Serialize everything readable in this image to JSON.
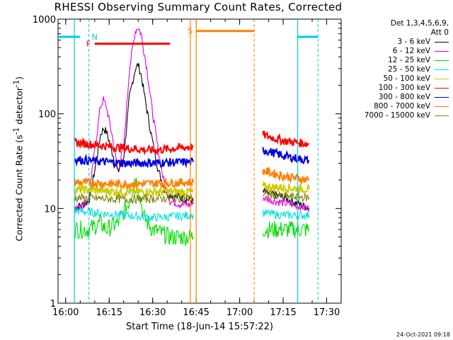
{
  "title": "RHESSI Observing Summary Count Rates, Corrected",
  "timestamp": "24-Oct-2021 09:18",
  "legend_header": [
    "Det 1,3,4,5,6,9,",
    "Att 0"
  ],
  "chart_data": {
    "type": "line",
    "xlabel": "Start Time (18-Jun-14 15:57:22)",
    "ylabel": "Corrected Count Rate (s⁻¹ detector⁻¹)",
    "ylabel_main": "Corrected Count Rate (s",
    "ylabel_sup1": "-1",
    "ylabel_mid": " detector",
    "ylabel_sup2": "-1",
    "ylabel_end": ")",
    "y_scale": "log",
    "ylim": [
      1,
      1000
    ],
    "xlim": [
      "15:57:22",
      "17:35:00"
    ],
    "x_ticks": [
      "16:00",
      "16:15",
      "16:30",
      "16:45",
      "17:00",
      "17:15",
      "17:30"
    ],
    "y_ticks": [
      "1",
      "10",
      "100",
      "1000"
    ],
    "legend_position": "right",
    "data_gap": [
      "16:44",
      "17:08"
    ],
    "series": [
      {
        "name": "3 - 6 keV",
        "color": "#000000",
        "points": [
          [
            "16:03",
            10
          ],
          [
            "16:06",
            11
          ],
          [
            "16:08",
            12
          ],
          [
            "16:10",
            25
          ],
          [
            "16:12",
            60
          ],
          [
            "16:13",
            70
          ],
          [
            "16:14",
            65
          ],
          [
            "16:16",
            40
          ],
          [
            "16:18",
            24
          ],
          [
            "16:20",
            35
          ],
          [
            "16:22",
            150
          ],
          [
            "16:24",
            300
          ],
          [
            "16:25",
            330
          ],
          [
            "16:26",
            260
          ],
          [
            "16:28",
            110
          ],
          [
            "16:30",
            50
          ],
          [
            "16:32",
            25
          ],
          [
            "16:34",
            16
          ],
          [
            "16:36",
            14
          ],
          [
            "16:40",
            13
          ],
          [
            "16:44",
            12
          ],
          [
            "17:08",
            15
          ],
          [
            "17:12",
            14
          ],
          [
            "17:18",
            12
          ],
          [
            "17:24",
            10
          ]
        ]
      },
      {
        "name": "6 - 12 keV",
        "color": "#e000e0",
        "points": [
          [
            "16:03",
            10
          ],
          [
            "16:06",
            11
          ],
          [
            "16:08",
            13
          ],
          [
            "16:10",
            40
          ],
          [
            "16:12",
            120
          ],
          [
            "16:13",
            140
          ],
          [
            "16:14",
            120
          ],
          [
            "16:16",
            60
          ],
          [
            "16:18",
            25
          ],
          [
            "16:20",
            45
          ],
          [
            "16:22",
            300
          ],
          [
            "16:24",
            750
          ],
          [
            "16:25",
            820
          ],
          [
            "16:26",
            700
          ],
          [
            "16:28",
            300
          ],
          [
            "16:30",
            100
          ],
          [
            "16:32",
            40
          ],
          [
            "16:34",
            18
          ],
          [
            "16:36",
            12
          ],
          [
            "16:40",
            11
          ],
          [
            "16:44",
            11
          ],
          [
            "17:08",
            13
          ],
          [
            "17:12",
            12
          ],
          [
            "17:18",
            11
          ],
          [
            "17:24",
            10
          ]
        ]
      },
      {
        "name": "12 - 25 keV",
        "color": "#00dd00",
        "points": [
          [
            "16:03",
            6
          ],
          [
            "16:08",
            6
          ],
          [
            "16:12",
            7
          ],
          [
            "16:14",
            6
          ],
          [
            "16:18",
            7
          ],
          [
            "16:22",
            12
          ],
          [
            "16:24",
            22
          ],
          [
            "16:25",
            17
          ],
          [
            "16:27",
            8
          ],
          [
            "16:30",
            6
          ],
          [
            "16:36",
            5
          ],
          [
            "16:44",
            5
          ],
          [
            "17:08",
            6
          ],
          [
            "17:15",
            6
          ],
          [
            "17:24",
            6
          ]
        ]
      },
      {
        "name": "25 - 50 keV",
        "color": "#00e0e0",
        "points": [
          [
            "16:03",
            9.5
          ],
          [
            "16:10",
            9
          ],
          [
            "16:20",
            8.5
          ],
          [
            "16:30",
            8
          ],
          [
            "16:44",
            8.5
          ],
          [
            "17:08",
            9
          ],
          [
            "17:15",
            8.5
          ],
          [
            "17:24",
            8.5
          ]
        ]
      },
      {
        "name": "50 - 100 keV",
        "color": "#cccc00",
        "points": [
          [
            "16:03",
            16
          ],
          [
            "16:20",
            15
          ],
          [
            "16:44",
            15
          ],
          [
            "17:08",
            17
          ],
          [
            "17:24",
            16
          ]
        ]
      },
      {
        "name": "100 - 300 keV",
        "color": "#ff0000",
        "points": [
          [
            "16:03",
            50
          ],
          [
            "16:15",
            45
          ],
          [
            "16:30",
            41
          ],
          [
            "16:44",
            45
          ],
          [
            "17:08",
            60
          ],
          [
            "17:15",
            52
          ],
          [
            "17:24",
            48
          ]
        ]
      },
      {
        "name": "300 - 800 keV",
        "color": "#0000dd",
        "points": [
          [
            "16:03",
            33
          ],
          [
            "16:20",
            30
          ],
          [
            "16:44",
            31
          ],
          [
            "17:08",
            42
          ],
          [
            "17:15",
            36
          ],
          [
            "17:24",
            32
          ]
        ]
      },
      {
        "name": "800 - 7000 keV",
        "color": "#ff8000",
        "points": [
          [
            "16:03",
            19
          ],
          [
            "16:20",
            18
          ],
          [
            "16:44",
            19
          ],
          [
            "17:08",
            25
          ],
          [
            "17:15",
            22
          ],
          [
            "17:24",
            20
          ]
        ]
      },
      {
        "name": "7000 - 15000 keV",
        "color": "#808000",
        "points": [
          [
            "16:03",
            13
          ],
          [
            "16:20",
            12.5
          ],
          [
            "16:44",
            13
          ],
          [
            "17:08",
            14
          ],
          [
            "17:24",
            13
          ]
        ]
      }
    ],
    "annotations": {
      "N": {
        "label": "N",
        "color": "#00ccdd",
        "marker_times": [
          "16:06",
          "17:27"
        ]
      },
      "F": {
        "label": "F",
        "color": "#ff0000",
        "start": "16:10",
        "end": "16:36",
        "level": 550
      },
      "S": {
        "label": "S",
        "color": "#ff8000",
        "start": "16:45",
        "end": "17:05",
        "level": 750
      },
      "night_bars": [
        [
          "15:57:22",
          "16:05"
        ],
        [
          "17:20",
          "17:27"
        ]
      ],
      "orange_lines": [
        "16:43",
        "16:45"
      ],
      "cyan_solid": [
        "16:03",
        "17:20"
      ],
      "cyan_dashed": [
        "16:08",
        "17:27"
      ],
      "orange_dashed": [
        "17:05"
      ]
    }
  }
}
